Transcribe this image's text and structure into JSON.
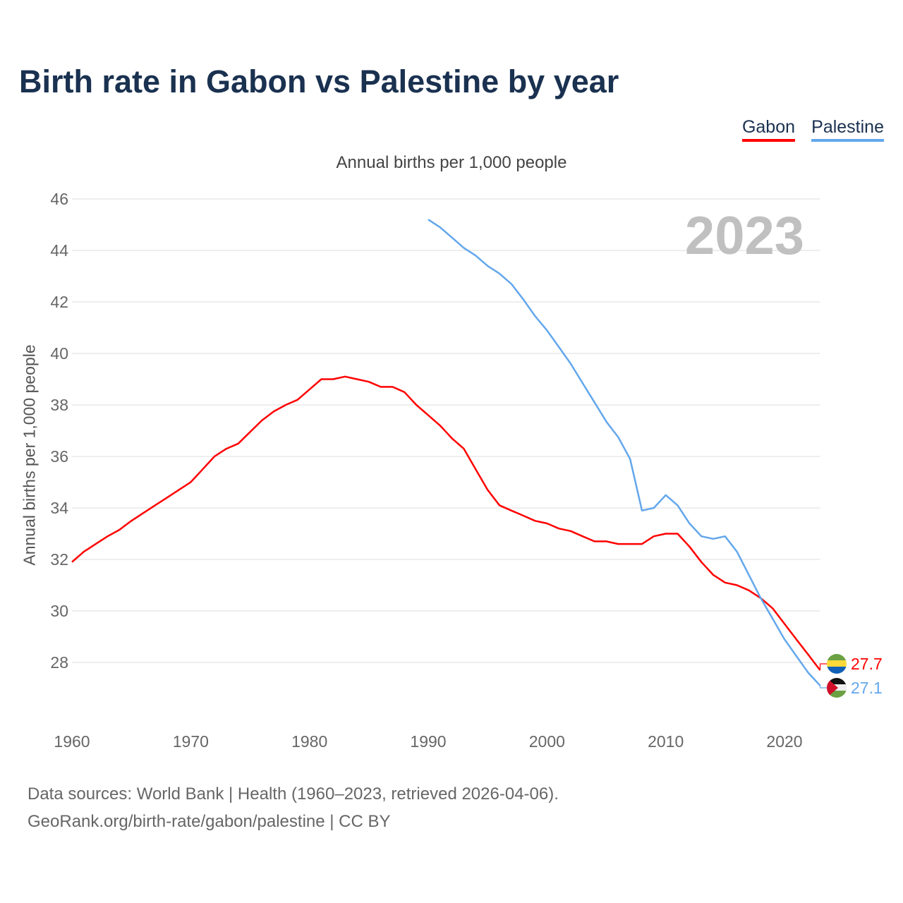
{
  "chart_data": {
    "type": "line",
    "title": "Birth rate in Gabon vs Palestine by year",
    "subtitle": "Annual births per 1,000 people",
    "ylabel": "Annual births per 1,000 people",
    "xlabel": "",
    "year_label": "2023",
    "xlim": [
      1960,
      2023
    ],
    "ylim": [
      26,
      46
    ],
    "yticks": [
      28,
      30,
      32,
      34,
      36,
      38,
      40,
      42,
      44,
      46
    ],
    "xticks": [
      1960,
      1970,
      1980,
      1990,
      2000,
      2010,
      2020
    ],
    "grid": true,
    "legend_position": "top-right",
    "series": [
      {
        "name": "Gabon",
        "color": "#ff0000",
        "start": 1960,
        "end_label": "27.7",
        "values": [
          31.9,
          32.3,
          32.6,
          32.9,
          33.15,
          33.5,
          33.8,
          34.1,
          34.4,
          34.7,
          35.0,
          35.5,
          36.0,
          36.3,
          36.5,
          36.95,
          37.4,
          37.75,
          38.0,
          38.2,
          38.6,
          39.0,
          39.0,
          39.1,
          39.0,
          38.9,
          38.7,
          38.7,
          38.5,
          38.0,
          37.6,
          37.2,
          36.7,
          36.3,
          35.5,
          34.7,
          34.1,
          33.9,
          33.7,
          33.5,
          33.4,
          33.2,
          33.1,
          32.9,
          32.7,
          32.7,
          32.6,
          32.6,
          32.6,
          32.9,
          33.0,
          33.0,
          32.5,
          31.9,
          31.4,
          31.1,
          31.0,
          30.8,
          30.5,
          30.1,
          29.5,
          28.9,
          28.3,
          27.7
        ]
      },
      {
        "name": "Palestine",
        "color": "#63a7ec",
        "start": 1990,
        "end_label": "27.1",
        "values": [
          45.2,
          44.9,
          44.5,
          44.1,
          43.8,
          43.4,
          43.1,
          42.7,
          42.1,
          41.45,
          40.9,
          40.25,
          39.6,
          38.85,
          38.1,
          37.35,
          36.75,
          35.9,
          33.9,
          34.0,
          34.5,
          34.1,
          33.4,
          32.9,
          32.8,
          32.9,
          32.3,
          31.4,
          30.5,
          29.7,
          28.9,
          28.25,
          27.6,
          27.1
        ]
      }
    ]
  },
  "footer": {
    "line1": "Data sources: World Bank | Health (1960–2023, retrieved 2026-04-06).",
    "line2": "GeoRank.org/birth-rate/gabon/palestine | CC BY"
  }
}
